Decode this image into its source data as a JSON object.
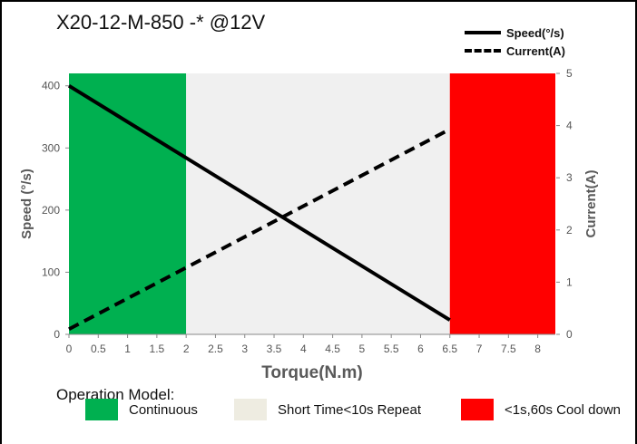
{
  "title": "X20-12-M-850 -*  @12V",
  "operation_model_label": "Operation Model:",
  "legend_bottom": [
    {
      "label": "Continuous",
      "color": "#00b050"
    },
    {
      "label": "Short Time<10s Repeat",
      "color": "#eeece1"
    },
    {
      "label": "<1s,60s Cool down",
      "color": "#ff0000"
    }
  ],
  "legend_top": [
    {
      "label": "Speed(°/s)",
      "style": "solid"
    },
    {
      "label": "Current(A)",
      "style": "dashed"
    }
  ],
  "chart_data": {
    "type": "line",
    "xlabel": "Torque(N.m)",
    "ylabel": "Speed  (°/s)",
    "y2label": "Current(A)",
    "xlim": [
      0,
      8.3
    ],
    "ylim": [
      0,
      420
    ],
    "y2lim": [
      0,
      5
    ],
    "xticks": [
      0,
      0.5,
      1,
      1.5,
      2,
      2.5,
      3,
      3.5,
      4,
      4.5,
      5,
      5.5,
      6,
      6.5,
      7,
      7.5,
      8
    ],
    "yticks": [
      0,
      100,
      200,
      300,
      400
    ],
    "y2ticks": [
      0,
      1,
      2,
      3,
      4,
      5
    ],
    "regions": [
      {
        "label": "Continuous",
        "x": [
          0,
          2
        ],
        "color": "#00b050"
      },
      {
        "label": "Short Time<10s Repeat",
        "x": [
          2,
          6.5
        ],
        "color": "#f0f0f0"
      },
      {
        "label": "<1s,60s Cool down",
        "x": [
          6.5,
          8.3
        ],
        "color": "#ff0000"
      }
    ],
    "series": [
      {
        "name": "Speed(°/s)",
        "axis": "left",
        "style": "solid",
        "x": [
          0,
          6.5
        ],
        "y": [
          400,
          23
        ]
      },
      {
        "name": "Current(A)",
        "axis": "right",
        "style": "dashed",
        "x": [
          0,
          6.5
        ],
        "y": [
          0.1,
          3.93
        ]
      }
    ],
    "grid": false
  }
}
